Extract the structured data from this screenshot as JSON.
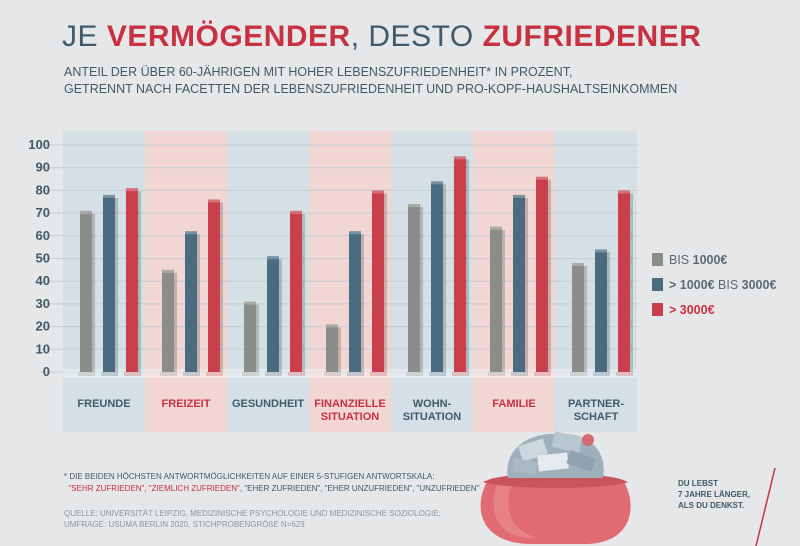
{
  "title": {
    "part1": "JE ",
    "part2": "VERMÖGENDER",
    "part3": ", DESTO ",
    "part4": "ZUFRIEDENER"
  },
  "subtitle": {
    "line1": "ANTEIL DER ÜBER 60-JÄHRIGEN MIT HOHER LEBENSZUFRIEDENHEIT* IN PROZENT,",
    "line2": "GETRENNT NACH FACETTEN DER LEBENSZUFRIEDENHEIT UND PRO-KOPF-HAUSHALTSEINKOMMEN"
  },
  "legend": {
    "item1_a": "BIS ",
    "item1_b": "1000€",
    "item2_a": "> 1000€",
    "item2_b": " BIS ",
    "item2_c": "3000€",
    "item3": "> 3000€"
  },
  "colors": {
    "gray": "#8b8e88",
    "blue": "#4b6b80",
    "red": "#c8404c",
    "band_blue": "#d5e0e6",
    "band_red": "#f1d6d4",
    "text_dark": "#3f5a6b",
    "accent": "#c8313f"
  },
  "footnote": {
    "line1": "* DIE BEIDEN HÖCHSTEN ANTWORTMÖGLICHKEITEN AUF EINER 5-STUFIGEN ANTWORTSKALA:",
    "line2_red": "\"SEHR ZUFRIEDEN\", \"ZIEMLICH ZUFRIEDEN\"",
    "line2_rest": ", \"EHER ZUFRIEDEN\", \"EHER UNZUFRIEDEN\", \"UNZUFRIEDEN\""
  },
  "source": {
    "line1": "QUELLE: UNIVERSITÄT LEIPZIG, MEDIZINISCHE PSYCHOLOGIE UND MEDIZINISCHE SOZIOLOGIE;",
    "line2": "UMFRAGE: USUMA BERLIN 2020, STICHPROBENGRÖßE N=623"
  },
  "slogan": {
    "line1": "DU LEBST",
    "line2": "7 JAHRE LÄNGER,",
    "line3": "ALS DU DENKST."
  },
  "chart_data": {
    "type": "bar",
    "categories": [
      [
        "FREUNDE"
      ],
      [
        "FREIZEIT"
      ],
      [
        "GESUNDHEIT"
      ],
      [
        "FINANZIELLE",
        "SITUATION"
      ],
      [
        "WOHN-",
        "SITUATION"
      ],
      [
        "FAMILIE"
      ],
      [
        "PARTNER-",
        "SCHAFT"
      ]
    ],
    "category_highlight": [
      false,
      true,
      false,
      true,
      false,
      true,
      false
    ],
    "series": [
      {
        "name": "BIS 1000€",
        "color": "#8b8e88",
        "values": [
          71,
          45,
          31,
          21,
          74,
          64,
          48
        ]
      },
      {
        "name": "> 1000€ BIS 3000€",
        "color": "#4b6b80",
        "values": [
          78,
          62,
          51,
          62,
          84,
          78,
          54
        ]
      },
      {
        "name": "> 3000€",
        "color": "#c8404c",
        "values": [
          81,
          76,
          71,
          80,
          95,
          86,
          80
        ]
      }
    ],
    "yticks": [
      0,
      10,
      20,
      30,
      40,
      50,
      60,
      70,
      80,
      90,
      100
    ],
    "ylim": [
      0,
      100
    ],
    "grid": true,
    "legend_position": "right"
  }
}
